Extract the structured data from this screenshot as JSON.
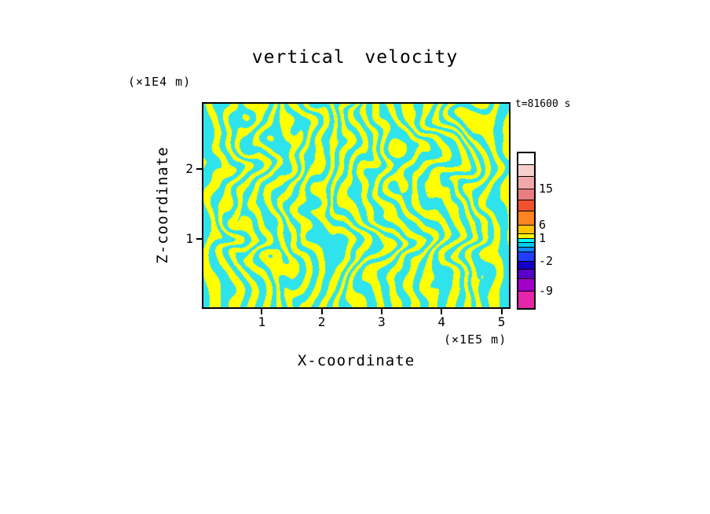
{
  "chart": {
    "title": "vertical velocity",
    "xlabel": "X-coordinate",
    "zlabel": "Z-coordinate",
    "x_unit": "(×1E5 m)",
    "z_unit": "(×1E4 m)",
    "time_label": "t=81600 s"
  },
  "chart_data": {
    "type": "heatmap",
    "title": "vertical velocity",
    "xlabel": "X-coordinate",
    "ylabel": "Z-coordinate",
    "x_units": "×1E5 m",
    "z_units": "×1E4 m",
    "time_label": "t=81600 s",
    "xlim": [
      0,
      5.15
    ],
    "zlim": [
      0,
      2.95
    ],
    "x_ticks": [
      1,
      2,
      3,
      4,
      5
    ],
    "z_ticks": [
      1,
      2
    ],
    "grid": false,
    "legend_position": "right-colorbar",
    "field_description": "binary turbulent internal-wave field: yellow = positive vertical velocity, cyan = negative vertical velocity",
    "field_colors": {
      "positive": "#ffff00",
      "negative": "#2fe3ec"
    },
    "colorbar": {
      "segments": [
        {
          "color": "#ffffff",
          "height": 14
        },
        {
          "color": "#f6cfcf",
          "height": 15
        },
        {
          "color": "#f0a8a8",
          "height": 16
        },
        {
          "color": "#e87e7e",
          "height": 14
        },
        {
          "color": "#f1512e",
          "height": 14
        },
        {
          "color": "#fd8420",
          "height": 18
        },
        {
          "color": "#ffc400",
          "height": 11
        },
        {
          "color": "#ffff00",
          "height": 6
        },
        {
          "color": "#00ffff",
          "height": 5
        },
        {
          "color": "#00ccee",
          "height": 6
        },
        {
          "color": "#0f86ff",
          "height": 6
        },
        {
          "color": "#1f3dff",
          "height": 12
        },
        {
          "color": "#1400c8",
          "height": 10
        },
        {
          "color": "#5a00c8",
          "height": 12
        },
        {
          "color": "#a000c8",
          "height": 16
        },
        {
          "color": "#e626aa",
          "height": 22
        }
      ],
      "labels": [
        {
          "value": "15",
          "boundary_after_segment": 3
        },
        {
          "value": "6",
          "boundary_after_segment": 6
        },
        {
          "value": "1",
          "boundary_after_segment": 8
        },
        {
          "value": "-2",
          "boundary_after_segment": 12
        },
        {
          "value": "-9",
          "boundary_after_segment": 15
        }
      ]
    },
    "pattern": {
      "seed": 1337,
      "stripe_freq": 18,
      "warp_amp": 2.2,
      "z_wave_freq": 2.3,
      "z_wave_amp": 0.85,
      "noise_base_freq": 3,
      "octaves": 3
    }
  }
}
